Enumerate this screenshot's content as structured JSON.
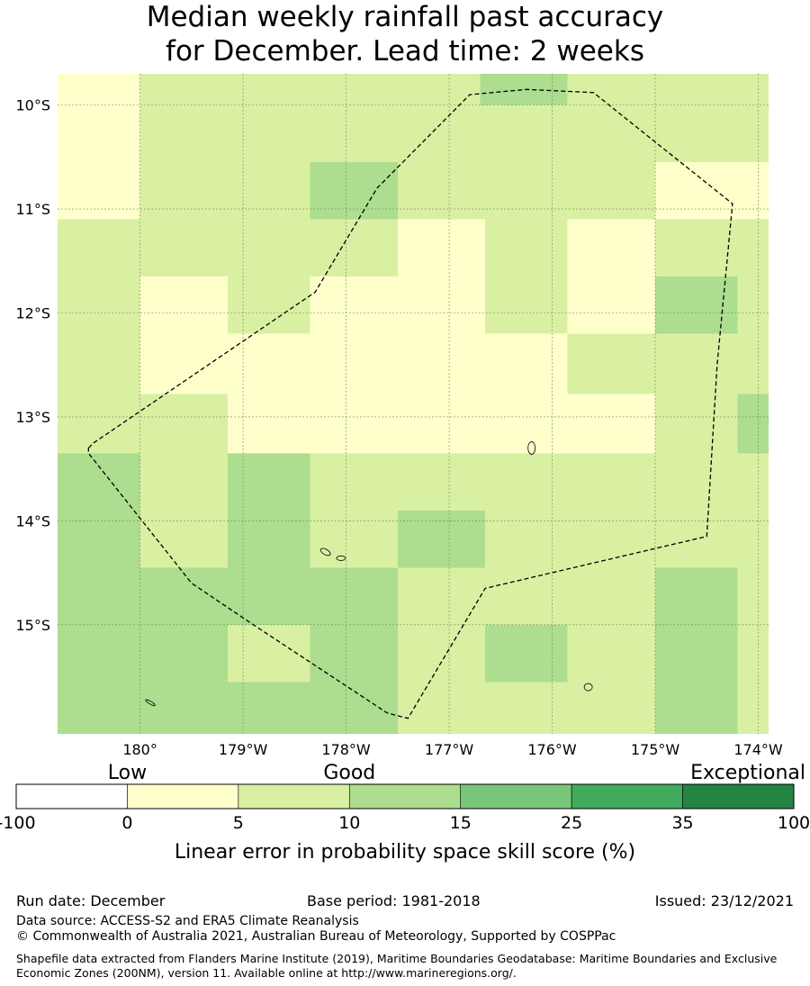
{
  "title_line1": "Median weekly rainfall past accuracy",
  "title_line2": "for December. Lead time: 2 weeks",
  "map": {
    "lon_min": -180.8,
    "lon_max": -173.9,
    "lat_top": -9.7,
    "lat_bottom": -16.05,
    "cell_size_deg": 0.8,
    "x_ticks": [
      {
        "lon": -180,
        "label": "180°"
      },
      {
        "lon": -179,
        "label": "179°W"
      },
      {
        "lon": -178,
        "label": "178°W"
      },
      {
        "lon": -177,
        "label": "177°W"
      },
      {
        "lon": -176,
        "label": "176°W"
      },
      {
        "lon": -175,
        "label": "175°W"
      },
      {
        "lon": -174,
        "label": "174°W"
      }
    ],
    "y_ticks": [
      {
        "lat": -10,
        "label": "10°S"
      },
      {
        "lat": -11,
        "label": "11°S"
      },
      {
        "lat": -12,
        "label": "12°S"
      },
      {
        "lat": -13,
        "label": "13°S"
      },
      {
        "lat": -14,
        "label": "14°S"
      },
      {
        "lat": -15,
        "label": "15°S"
      }
    ],
    "grid_lines": true,
    "grid_cells": [
      [
        -180.8,
        -180.0,
        -9.7,
        -11.1,
        "0-5"
      ],
      [
        -180.0,
        -176.7,
        -9.7,
        -10.55,
        "5-10"
      ],
      [
        -176.7,
        -175.85,
        -9.7,
        -10.0,
        "10-15"
      ],
      [
        -176.7,
        -175.85,
        -10.0,
        -10.55,
        "5-10"
      ],
      [
        -175.85,
        -173.9,
        -9.7,
        -10.55,
        "5-10"
      ],
      [
        -180.0,
        -178.35,
        -10.55,
        -11.1,
        "5-10"
      ],
      [
        -178.35,
        -177.5,
        -10.55,
        -11.1,
        "10-15"
      ],
      [
        -177.5,
        -175.0,
        -10.55,
        -11.1,
        "5-10"
      ],
      [
        -175.0,
        -173.9,
        -10.55,
        -11.1,
        "0-5"
      ],
      [
        -180.8,
        -177.5,
        -11.1,
        -11.65,
        "5-10"
      ],
      [
        -177.5,
        -176.65,
        -11.1,
        -12.2,
        "0-5"
      ],
      [
        -176.65,
        -175.85,
        -11.1,
        -12.2,
        "5-10"
      ],
      [
        -175.85,
        -175.0,
        -11.1,
        -12.2,
        "0-5"
      ],
      [
        -175.0,
        -173.9,
        -11.1,
        -11.65,
        "5-10"
      ],
      [
        -180.8,
        -180.0,
        -11.65,
        -13.35,
        "5-10"
      ],
      [
        -180.0,
        -179.15,
        -11.65,
        -12.78,
        "0-5"
      ],
      [
        -179.15,
        -178.35,
        -11.65,
        -12.2,
        "5-10"
      ],
      [
        -178.35,
        -177.5,
        -11.65,
        -12.2,
        "0-5"
      ],
      [
        -175.0,
        -174.2,
        -11.65,
        -12.2,
        "10-15"
      ],
      [
        -174.2,
        -173.9,
        -11.65,
        -12.2,
        "5-10"
      ],
      [
        -179.15,
        -175.0,
        -12.2,
        -13.35,
        "0-5"
      ],
      [
        -175.85,
        -175.0,
        -12.2,
        -12.78,
        "5-10"
      ],
      [
        -175.0,
        -173.9,
        -12.2,
        -12.78,
        "5-10"
      ],
      [
        -180.0,
        -179.15,
        -12.78,
        -13.35,
        "5-10"
      ],
      [
        -175.0,
        -174.2,
        -12.78,
        -13.9,
        "5-10"
      ],
      [
        -174.2,
        -173.9,
        -12.78,
        -13.9,
        "10-15"
      ],
      [
        -180.8,
        -180.0,
        -13.35,
        -16.05,
        "10-15"
      ],
      [
        -180.0,
        -179.15,
        -13.35,
        -14.45,
        "5-10"
      ],
      [
        -179.15,
        -178.35,
        -13.35,
        -14.45,
        "10-15"
      ],
      [
        -178.35,
        -173.9,
        -13.35,
        -13.9,
        "5-10"
      ],
      [
        -178.35,
        -177.5,
        -13.9,
        -14.45,
        "5-10"
      ],
      [
        -177.5,
        -176.65,
        -13.9,
        -14.45,
        "10-15"
      ],
      [
        -176.65,
        -173.9,
        -13.9,
        -14.45,
        "5-10"
      ],
      [
        -180.0,
        -177.5,
        -14.45,
        -16.05,
        "10-15"
      ],
      [
        -179.15,
        -178.35,
        -15.0,
        -15.55,
        "5-10"
      ],
      [
        -177.5,
        -175.0,
        -14.45,
        -16.05,
        "5-10"
      ],
      [
        -176.65,
        -175.85,
        -15.0,
        -15.55,
        "10-15"
      ],
      [
        -175.0,
        -174.2,
        -14.45,
        -16.05,
        "10-15"
      ],
      [
        -174.2,
        -173.9,
        -14.45,
        -16.05,
        "5-10"
      ]
    ],
    "eez_boundary": [
      [
        -180.5,
        -13.3
      ],
      [
        -180.45,
        -13.25
      ],
      [
        -178.3,
        -11.8
      ],
      [
        -177.7,
        -10.8
      ],
      [
        -176.8,
        -9.9
      ],
      [
        -176.25,
        -9.85
      ],
      [
        -175.6,
        -9.88
      ],
      [
        -174.25,
        -10.95
      ],
      [
        -174.4,
        -12.5
      ],
      [
        -174.5,
        -14.15
      ],
      [
        -176.65,
        -14.65
      ],
      [
        -177.4,
        -15.9
      ],
      [
        -177.6,
        -15.85
      ],
      [
        -178.9,
        -15.0
      ],
      [
        -179.5,
        -14.6
      ],
      [
        -180.5,
        -13.35
      ]
    ],
    "islands": [
      {
        "name": "swains",
        "lon": -176.2,
        "lat": -13.3
      },
      {
        "name": "fakaofo-west",
        "lon": -178.2,
        "lat": -14.3
      },
      {
        "name": "fakaofo-east",
        "lon": -178.05,
        "lat": -14.36
      },
      {
        "name": "south-reef",
        "lon": -175.65,
        "lat": -15.6
      },
      {
        "name": "west-reef",
        "lon": -179.9,
        "lat": -15.75
      }
    ]
  },
  "colorbar": {
    "category_labels": [
      {
        "at": 1,
        "text": "Low"
      },
      {
        "at": 3,
        "text": "Good"
      },
      {
        "at": 6,
        "text": "Exceptional"
      }
    ],
    "bins": [
      {
        "key": "neg-0",
        "color": "#ffffff"
      },
      {
        "key": "0-5",
        "color": "#ffffcc"
      },
      {
        "key": "5-10",
        "color": "#d9f0a3"
      },
      {
        "key": "10-15",
        "color": "#addd8e"
      },
      {
        "key": "15-25",
        "color": "#78c679"
      },
      {
        "key": "25-35",
        "color": "#41ab5d"
      },
      {
        "key": "35-100",
        "color": "#238443"
      }
    ],
    "tick_labels": [
      "-100",
      "0",
      "5",
      "10",
      "15",
      "25",
      "35",
      "100"
    ],
    "label": "Linear error in probability space skill score (%)"
  },
  "footer": {
    "run_date": "Run date: December",
    "base_period": "Base period: 1981-2018",
    "issued": "Issued: 23/12/2021",
    "data_source": "Data source: ACCESS-S2 and ERA5 Climate Reanalysis",
    "copyright": "© Commonwealth of Australia 2021, Australian Bureau of Meteorology, Supported by COSPPac",
    "shapefile": "Shapefile data extracted from Flanders Marine Institute (2019), Maritime Boundaries Geodatabase: Maritime Boundaries and Exclusive Economic Zones (200NM), version 11. Available online at http://www.marineregions.org/."
  }
}
